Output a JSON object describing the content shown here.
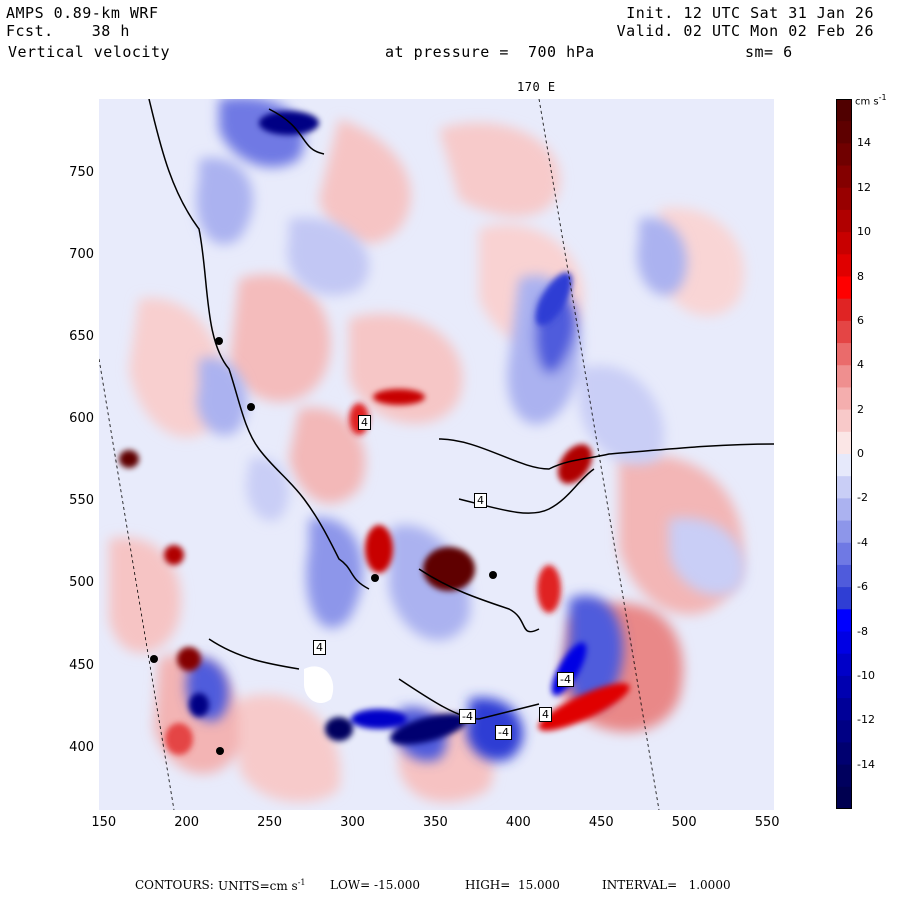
{
  "header": {
    "model": "AMPS 0.89-km WRF",
    "forecast": "Fcst.    38 h",
    "field": "Vertical velocity",
    "init": "Init. 12 UTC Sat 31 Jan 26",
    "valid": "Valid. 02 UTC Mon 02 Feb 26",
    "pressure": "at pressure =  700 hPa",
    "smoothing": "sm= 6",
    "meridian_label": "170 E"
  },
  "axes": {
    "x_ticks": [
      "150",
      "200",
      "250",
      "300",
      "350",
      "400",
      "450",
      "500",
      "550"
    ],
    "y_ticks": [
      "750",
      "700",
      "650",
      "600",
      "550",
      "500",
      "450",
      "400"
    ],
    "xlim": [
      148,
      555
    ],
    "ylim": [
      362,
      795
    ]
  },
  "colorbar": {
    "units": "cm s",
    "units_exp": "-1",
    "tick_labels": [
      "14",
      "12",
      "10",
      "8",
      "6",
      "4",
      "2",
      "0",
      "-2",
      "-4",
      "-6",
      "-8",
      "-10",
      "-12",
      "-14"
    ],
    "min": -16,
    "max": 16,
    "colors_positive": [
      "#fbe6e6",
      "#f8c9c9",
      "#f4aeae",
      "#ef8f8f",
      "#ea6b6b",
      "#e44545",
      "#e02424",
      "#ff0000",
      "#e00000",
      "#c80000",
      "#b00000",
      "#980000",
      "#840000",
      "#700000",
      "#5e0000",
      "#500000"
    ],
    "colors_negative": [
      "#e6e9fb",
      "#c9cef6",
      "#abb2f0",
      "#8d96ea",
      "#6f79e4",
      "#4f5bdc",
      "#2f3ed4",
      "#0000ff",
      "#0000e4",
      "#0000c8",
      "#0000b0",
      "#000098",
      "#000084",
      "#000070",
      "#00005e",
      "#000050"
    ]
  },
  "map": {
    "high_low_markers": [
      "4",
      "4",
      "4",
      "4",
      "-4",
      "-4",
      "-4"
    ]
  },
  "footer": {
    "contours": "CONTOURS:",
    "units": "UNITS=cm s",
    "units_exp": "-1",
    "low": "LOW= -15.000",
    "high": "HIGH=  15.000",
    "interval": "INTERVAL=   1.0000"
  }
}
